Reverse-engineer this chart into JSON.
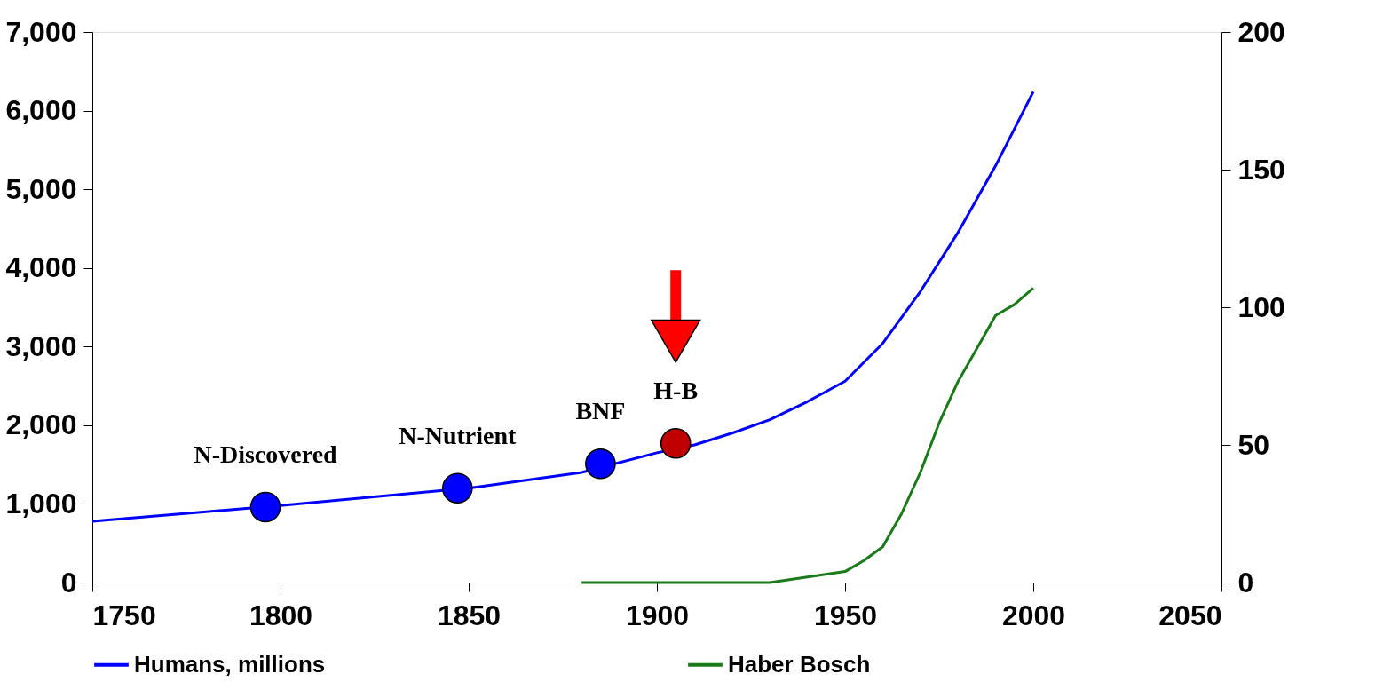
{
  "chart_data": {
    "type": "line",
    "xlim": [
      1750,
      2050
    ],
    "xticks": [
      1750,
      1800,
      1850,
      1900,
      1950,
      2000,
      2050
    ],
    "ylim": [
      0,
      7000
    ],
    "yticks": [
      0,
      {
        "value": 1000,
        "label": "1,000"
      },
      {
        "value": 2000,
        "label": "2,000"
      },
      {
        "value": 3000,
        "label": "3,000"
      },
      {
        "value": 4000,
        "label": "4,000"
      },
      {
        "value": 5000,
        "label": "5,000"
      },
      {
        "value": 6000,
        "label": "6,000"
      },
      {
        "value": 7000,
        "label": "7,000"
      }
    ],
    "y2lim": [
      0,
      200
    ],
    "y2ticks": [
      0,
      50,
      100,
      150,
      200
    ],
    "grid": false,
    "legend": "bottom",
    "series": [
      {
        "name": "Humans, millions",
        "color": "#0000ff",
        "type": "line",
        "x": [
          1750,
          1800,
          1850,
          1880,
          1900,
          1910,
          1920,
          1930,
          1940,
          1950,
          1960,
          1970,
          1980,
          1990,
          2000
        ],
        "values": [
          780,
          980,
          1200,
          1400,
          1650,
          1750,
          1900,
          2070,
          2300,
          2560,
          3040,
          3700,
          4450,
          5300,
          6240
        ]
      },
      {
        "name": "Haber Bosch",
        "color": "#1a7a1a",
        "type": "line",
        "axis": "y2",
        "x": [
          1880,
          1900,
          1920,
          1930,
          1940,
          1950,
          1955,
          1960,
          1965,
          1970,
          1975,
          1980,
          1985,
          1990,
          1995,
          2000
        ],
        "values": [
          0,
          0,
          0,
          0,
          2,
          4,
          8,
          13,
          25,
          40,
          58,
          73,
          85,
          97,
          101,
          107
        ]
      },
      {
        "type": "scatter",
        "marker": "circle",
        "x": [
          1796,
          1847,
          1885,
          1905
        ],
        "values": [
          960,
          1200,
          1510,
          1770
        ],
        "colors": [
          "#0000ff",
          "#0000ff",
          "#0000ff",
          "#c00000"
        ]
      }
    ],
    "annotations": [
      {
        "text": "N-Discovered",
        "x": 1796,
        "y": 960
      },
      {
        "text": "N-Nutrient",
        "x": 1847,
        "y": 1200
      },
      {
        "text": "BNF",
        "x": 1885,
        "y": 1510
      },
      {
        "text": "H-B",
        "x": 1905,
        "y": 1770
      }
    ]
  }
}
